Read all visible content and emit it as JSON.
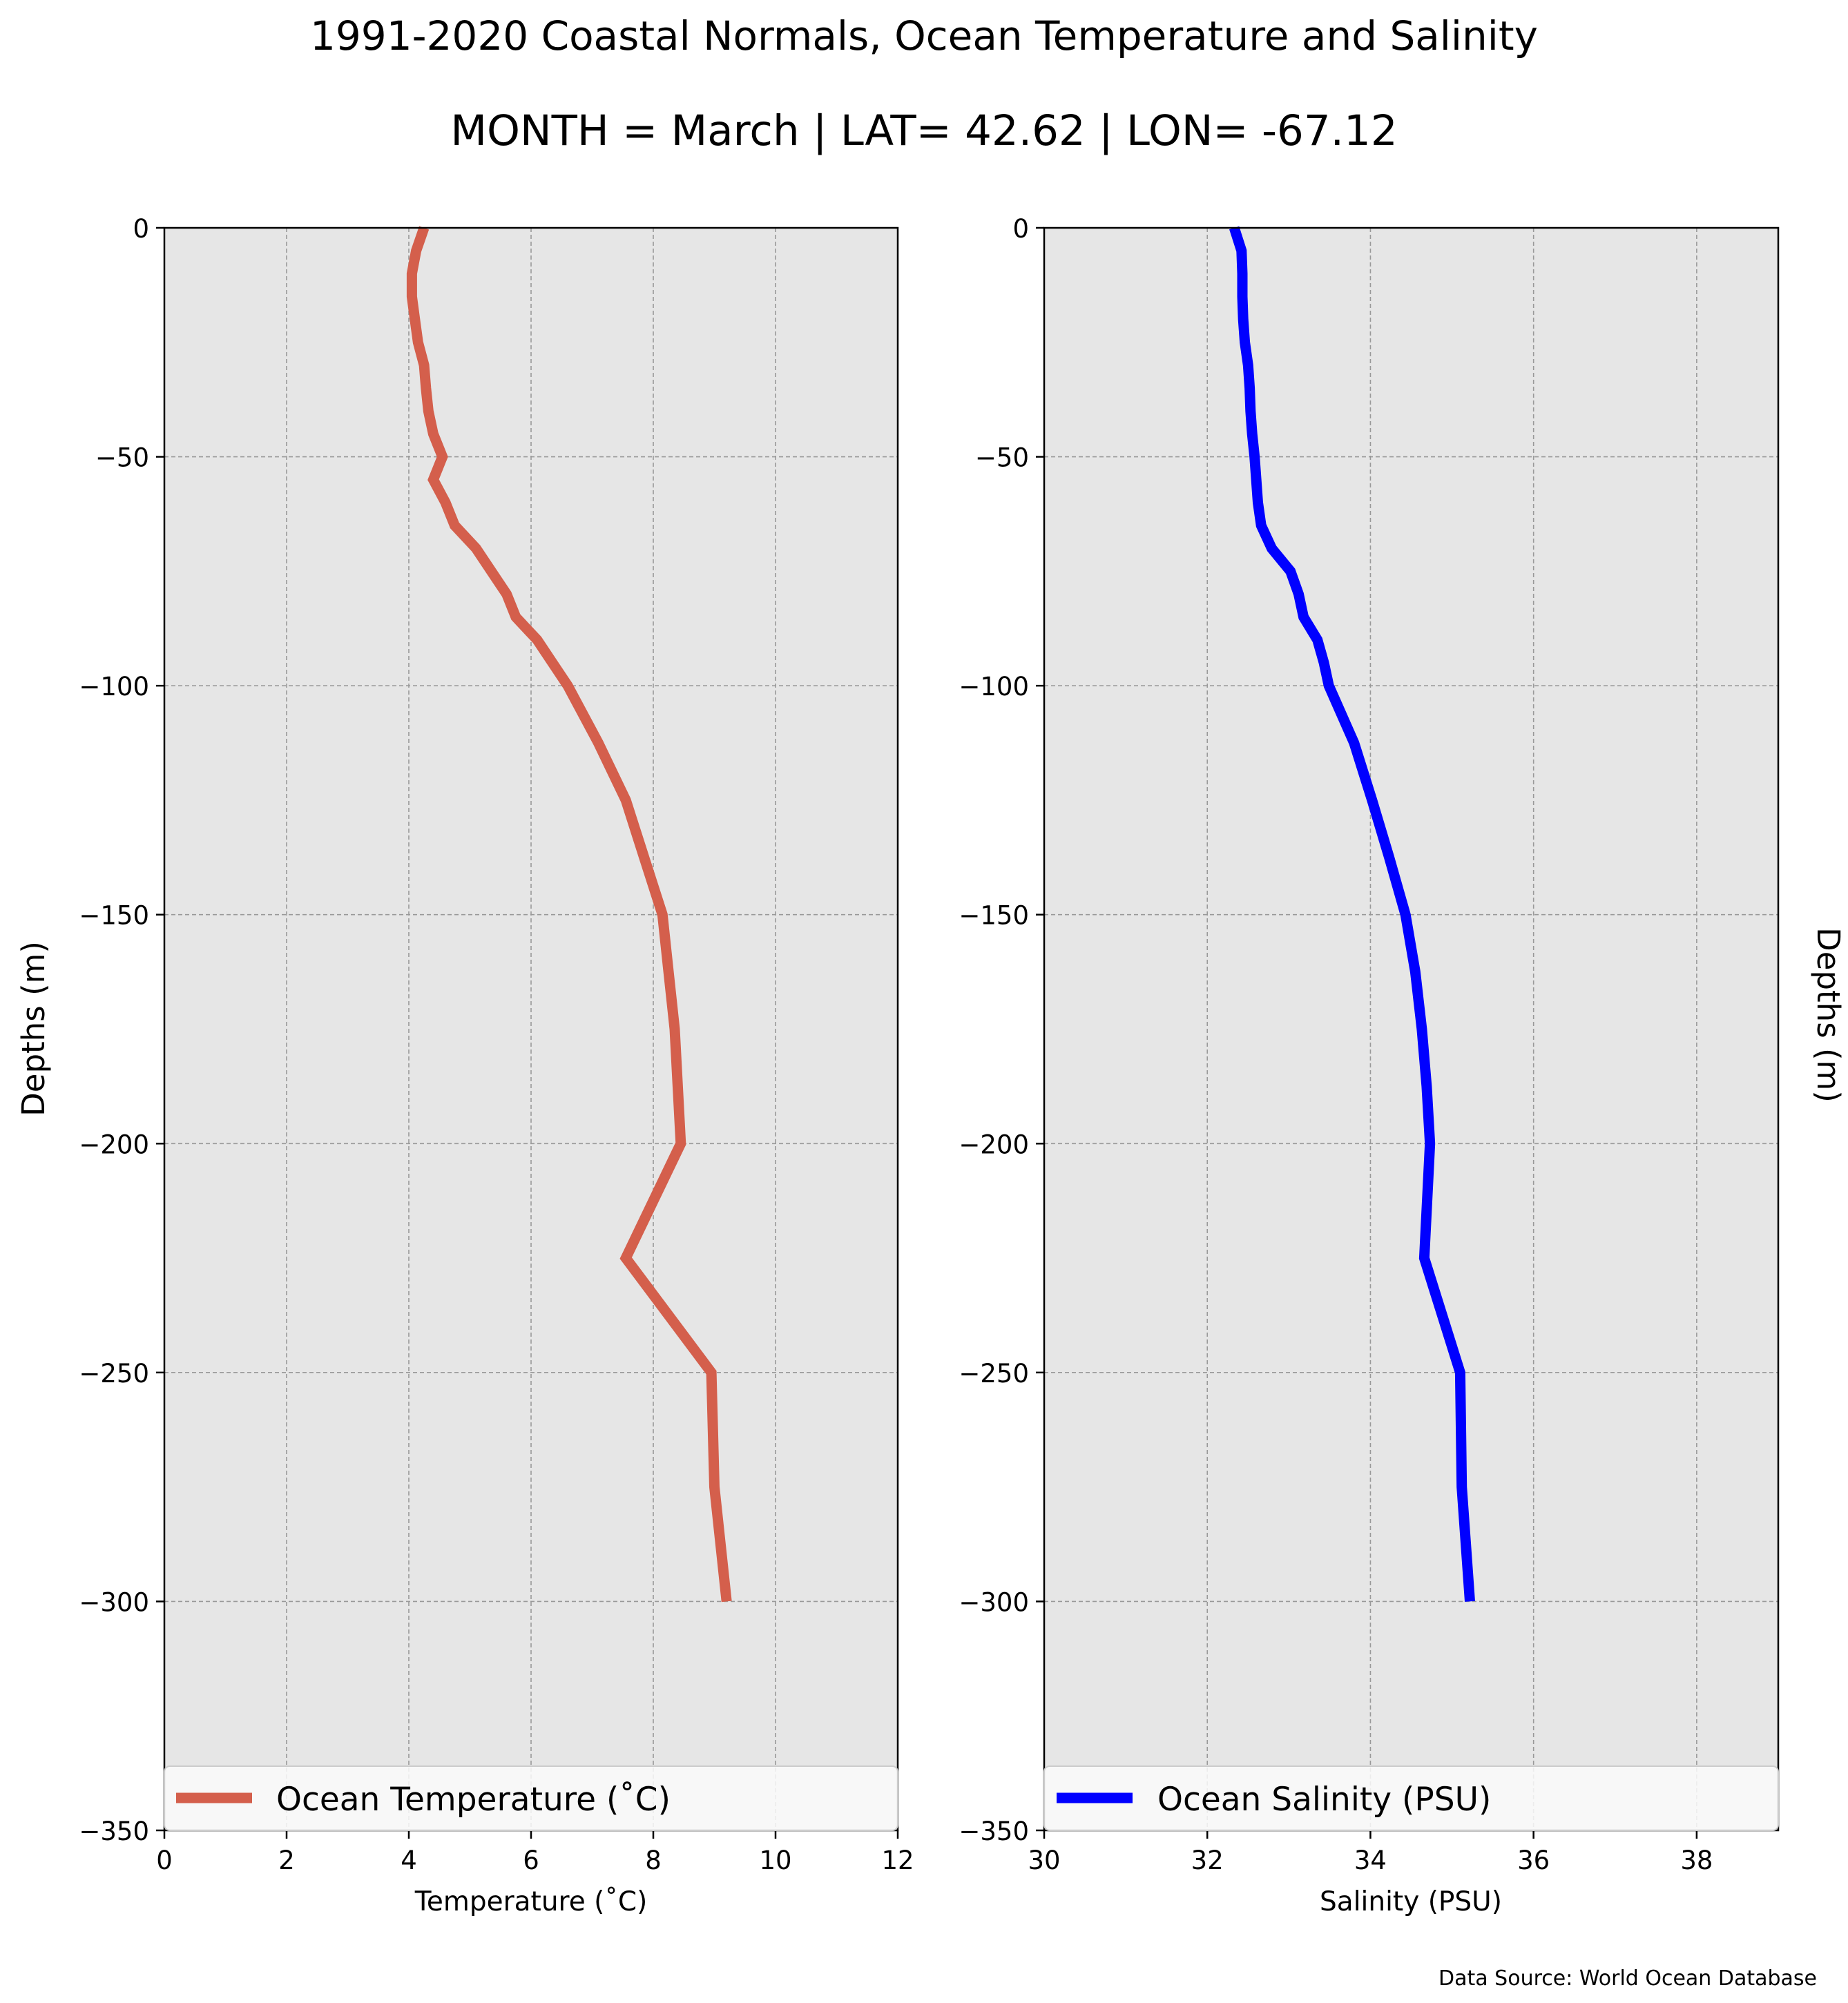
{
  "figure": {
    "title": "1991-2020 Coastal Normals, Ocean Temperature and Salinity",
    "subtitle": "MONTH = March | LAT= 42.62 | LON= -67.12",
    "source": "Data Source: World Ocean Database"
  },
  "colors": {
    "temperature_line": "#d45f4c",
    "salinity_line": "#0000ff",
    "plot_background": "#e6e6e6",
    "grid": "#999999",
    "legend_background": "#fafafa"
  },
  "chart_data": [
    {
      "type": "line",
      "orientation": "vertical-profile",
      "xlabel": "Temperature ($^\\circ$C)",
      "xlabel_display": "Temperature (˚C)",
      "ylabel": "Depths (m)",
      "xlim": [
        0,
        12
      ],
      "ylim": [
        -350,
        0
      ],
      "xticks": [
        "0",
        "2",
        "4",
        "6",
        "8",
        "10",
        "12"
      ],
      "yticks": [
        "0",
        "−50",
        "−100",
        "−150",
        "−200",
        "−250",
        "−300",
        "−350"
      ],
      "ytick_values": [
        0,
        -50,
        -100,
        -150,
        -200,
        -250,
        -300,
        -350
      ],
      "xtick_values": [
        0,
        2,
        4,
        6,
        8,
        10,
        12
      ],
      "grid": true,
      "legend_position": "bottom",
      "series": [
        {
          "name": "Ocean Temperature (˚C)",
          "color": "#d45f4c",
          "x": [
            4.25,
            4.12,
            4.05,
            4.05,
            4.1,
            4.15,
            4.25,
            4.28,
            4.32,
            4.4,
            4.55,
            4.4,
            4.6,
            4.75,
            5.1,
            5.35,
            5.6,
            5.75,
            6.1,
            6.35,
            6.6,
            7.1,
            7.55,
            7.85,
            8.15,
            8.25,
            8.35,
            8.4,
            8.45,
            7.55,
            8.95,
            9.0,
            9.2
          ],
          "y": [
            0,
            -5,
            -10,
            -15,
            -20,
            -25,
            -30,
            -35,
            -40,
            -45,
            -50,
            -55,
            -60,
            -65,
            -70,
            -75,
            -80,
            -85,
            -90,
            -95,
            -100,
            -112.5,
            -125,
            -137.5,
            -150,
            -162.5,
            -175,
            -187.5,
            -200,
            -225,
            -250,
            -275,
            -300
          ]
        }
      ]
    },
    {
      "type": "line",
      "orientation": "vertical-profile",
      "xlabel": "Salinity (PSU)",
      "ylabel": "Depths (m)",
      "xlim": [
        30,
        39
      ],
      "ylim": [
        -350,
        0
      ],
      "xticks": [
        "30",
        "32",
        "34",
        "36",
        "38"
      ],
      "yticks": [
        "0",
        "−50",
        "−100",
        "−150",
        "−200",
        "−250",
        "−300",
        "−350"
      ],
      "ytick_values": [
        0,
        -50,
        -100,
        -150,
        -200,
        -250,
        -300,
        -350
      ],
      "xtick_values": [
        30,
        32,
        34,
        36,
        38
      ],
      "grid": true,
      "legend_position": "bottom",
      "series": [
        {
          "name": "Ocean Salinity (PSU)",
          "color": "#0000ff",
          "x": [
            32.33,
            32.42,
            32.43,
            32.43,
            32.44,
            32.46,
            32.5,
            32.52,
            32.53,
            32.55,
            32.58,
            32.6,
            32.62,
            32.66,
            32.79,
            33.02,
            33.12,
            33.18,
            33.35,
            33.43,
            33.49,
            33.8,
            34.02,
            34.23,
            34.43,
            34.55,
            34.63,
            34.69,
            34.73,
            34.66,
            35.1,
            35.12,
            35.22
          ],
          "y": [
            0,
            -5,
            -10,
            -15,
            -20,
            -25,
            -30,
            -35,
            -40,
            -45,
            -50,
            -55,
            -60,
            -65,
            -70,
            -75,
            -80,
            -85,
            -90,
            -95,
            -100,
            -112.5,
            -125,
            -137.5,
            -150,
            -162.5,
            -175,
            -187.5,
            -200,
            -225,
            -250,
            -275,
            -300
          ]
        }
      ]
    }
  ]
}
